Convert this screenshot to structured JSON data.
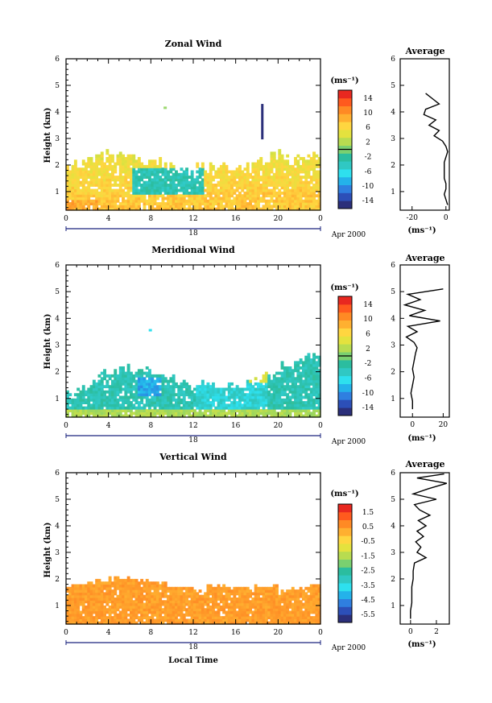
{
  "chart_data": [
    {
      "type": "heatmap",
      "title": "Zonal Wind",
      "xlabel": "",
      "ylabel": "Height (km)",
      "x_ticks": [
        "0",
        "4",
        "8",
        "12",
        "16",
        "20",
        "0"
      ],
      "y_ticks": [
        "1",
        "2",
        "3",
        "4",
        "5",
        "6"
      ],
      "date_label": "18",
      "month_label": "Apr 2000",
      "xlim": [
        0,
        24
      ],
      "ylim": [
        0.3,
        6.0
      ],
      "colorbar": {
        "unit": "(ms⁻¹)",
        "tick_labels": [
          "14",
          "10",
          "6",
          "2",
          "-2",
          "-6",
          "-10",
          "-14"
        ],
        "range": [
          -16,
          16
        ]
      },
      "average_profile": {
        "title": "Average",
        "xlabel": "(ms⁻¹)",
        "x_ticks": [
          "-20",
          "0"
        ],
        "xlim": [
          -27,
          2
        ],
        "heights": [
          0.5,
          0.7,
          0.9,
          1.1,
          1.3,
          1.5,
          1.7,
          1.9,
          2.1,
          2.3,
          2.5,
          2.7,
          2.9,
          3.1,
          3.3,
          3.5,
          3.7,
          3.9,
          4.1,
          4.3,
          4.5,
          4.7
        ],
        "values": [
          1,
          0,
          -1,
          0,
          0,
          -1,
          -1,
          -1,
          -1,
          0,
          1,
          0,
          -2,
          -7,
          -4,
          -10,
          -6,
          -13,
          -12,
          -4,
          -8,
          -12
        ]
      }
    },
    {
      "type": "heatmap",
      "title": "Meridional Wind",
      "xlabel": "",
      "ylabel": "Height (km)",
      "x_ticks": [
        "0",
        "4",
        "8",
        "12",
        "16",
        "20",
        "0"
      ],
      "y_ticks": [
        "1",
        "2",
        "3",
        "4",
        "5",
        "6"
      ],
      "date_label": "18",
      "month_label": "Apr 2000",
      "xlim": [
        0,
        24
      ],
      "ylim": [
        0.3,
        6.0
      ],
      "colorbar": {
        "unit": "(ms⁻¹)",
        "tick_labels": [
          "14",
          "10",
          "6",
          "2",
          "-2",
          "-6",
          "-10",
          "-14"
        ],
        "range": [
          -16,
          16
        ]
      },
      "average_profile": {
        "title": "Average",
        "xlabel": "(ms⁻¹)",
        "x_ticks": [
          "0",
          "20"
        ],
        "xlim": [
          -8,
          24
        ],
        "heights": [
          0.6,
          0.9,
          1.2,
          1.5,
          1.8,
          2.1,
          2.4,
          2.7,
          2.9,
          3.1,
          3.3,
          3.5,
          3.7,
          3.9,
          4.1,
          4.3,
          4.5,
          4.7,
          4.9,
          5.1
        ],
        "values": [
          0,
          0,
          -1,
          0,
          1,
          0,
          1,
          2,
          3,
          1,
          -4,
          3,
          -3,
          18,
          -2,
          8,
          -5,
          5,
          -3,
          20
        ]
      }
    },
    {
      "type": "heatmap",
      "title": "Vertical Wind",
      "xlabel": "Local Time",
      "ylabel": "Height (km)",
      "x_ticks": [
        "0",
        "4",
        "8",
        "12",
        "16",
        "20",
        "0"
      ],
      "y_ticks": [
        "1",
        "2",
        "3",
        "4",
        "5",
        "6"
      ],
      "date_label": "18",
      "month_label": "Apr 2000",
      "xlim": [
        0,
        24
      ],
      "ylim": [
        0.3,
        6.0
      ],
      "colorbar": {
        "unit": "(ms⁻¹)",
        "tick_labels": [
          "1.5",
          "0.5",
          "-0.5",
          "-1.5",
          "-2.5",
          "-3.5",
          "-4.5",
          "-5.5"
        ],
        "range": [
          -6.0,
          2.0
        ]
      },
      "average_profile": {
        "title": "Average",
        "xlabel": "(ms⁻¹)",
        "x_ticks": [
          "0",
          "2"
        ],
        "xlim": [
          -0.8,
          3
        ],
        "heights": [
          0.5,
          0.8,
          1.1,
          1.4,
          1.7,
          2.0,
          2.3,
          2.6,
          2.8,
          3.0,
          3.2,
          3.4,
          3.6,
          3.8,
          4.0,
          4.2,
          4.4,
          4.6,
          4.8,
          5.0,
          5.2,
          5.4,
          5.6,
          5.8,
          5.95
        ],
        "values": [
          0,
          0,
          0.1,
          0.1,
          0.1,
          0.2,
          0.2,
          0.3,
          1.2,
          0.5,
          0.8,
          0.4,
          1.0,
          0.5,
          1.2,
          0.6,
          1.5,
          0.7,
          0.3,
          2.0,
          0.2,
          1.4,
          2.8,
          0.5,
          2.6
        ]
      }
    }
  ]
}
